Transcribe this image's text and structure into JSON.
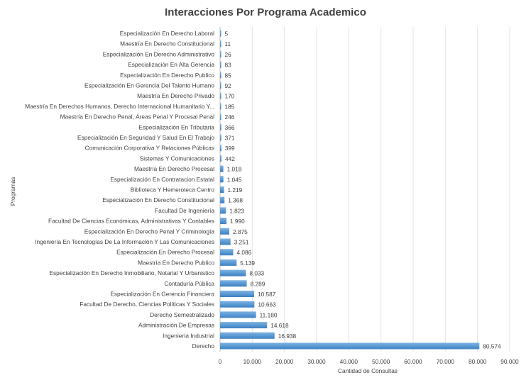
{
  "chart_data": {
    "type": "bar",
    "orientation": "horizontal",
    "title": "Interacciones Por Programa Academico",
    "xlabel": "Cantidad de Consultas",
    "ylabel": "Programas",
    "xlim": [
      0,
      90000
    ],
    "xticks": [
      0,
      10000,
      20000,
      30000,
      40000,
      50000,
      60000,
      70000,
      80000,
      90000
    ],
    "xtick_labels": [
      "0",
      "10.000",
      "20.000",
      "30.000",
      "40.000",
      "50.000",
      "60.000",
      "70.000",
      "80.000",
      "90.000"
    ],
    "grid": true,
    "legend": "none",
    "bar_color": "#5b9bd5",
    "categories": [
      "Especialización En Derecho Laboral",
      "Maestría En Derecho Constitucional",
      "Especialización En Derecho Administrativo",
      "Especialización En Alta Gerencia",
      "Especialización En Derecho Publico",
      "Especialización En Gerencia Del Talento Humano",
      "Maestría En Derecho Privado",
      "Maestría En Derechos Humanos, Derecho Internacional Humanitario Y...",
      "Maestría En Derecho Penal, Áreas Penal Y Procesal Penal",
      "Especialización En Tributaria",
      "Especialización En Seguridad Y Salud En El Trabajo",
      "Comunicación Corporativa Y Relaciones Públicas",
      "Sistemas Y Comunicaciones",
      "Maestría En Derecho Procesal",
      "Especialización En Contratacion Estatal",
      "Biblioteca Y Hemeroteca Centro",
      "Especialización En Derecho Constitucional",
      "Facultad De Ingeniería",
      "Facultad De Ciencias Económicas, Administrativas Y Contables",
      "Especialización En Derecho Penal Y Criminología",
      "Ingeniería En Tecnologías De La Información Y Las Comunicaciones",
      "Especialización En Derecho Procesal",
      "Maestría En Derecho Publico",
      "Especialización En Derecho Inmobiliario, Notarial Y Urbanistico",
      "Contaduría Pública",
      "Especialización En Gerencia Financiera",
      "Facultad De Derecho, Ciencias Políticas Y Sociales",
      "Derecho Semestralizado",
      "Administración De Empresas",
      "Ingeniería Industrial",
      "Derecho"
    ],
    "values": [
      5,
      11,
      26,
      83,
      85,
      92,
      170,
      185,
      246,
      366,
      371,
      399,
      442,
      1018,
      1045,
      1219,
      1368,
      1823,
      1990,
      2875,
      3251,
      4086,
      5139,
      8033,
      8289,
      10587,
      10663,
      11180,
      14618,
      16938,
      80574
    ],
    "value_labels": [
      "5",
      "11",
      "26",
      "83",
      "85",
      "92",
      "170",
      "185",
      "246",
      "366",
      "371",
      "399",
      "442",
      "1.018",
      "1.045",
      "1.219",
      "1.368",
      "1.823",
      "1.990",
      "2.875",
      "3.251",
      "4.086",
      "5.139",
      "8.033",
      "8.289",
      "10.587",
      "10.663",
      "11.180",
      "14.618",
      "16.938",
      "80.574"
    ]
  }
}
